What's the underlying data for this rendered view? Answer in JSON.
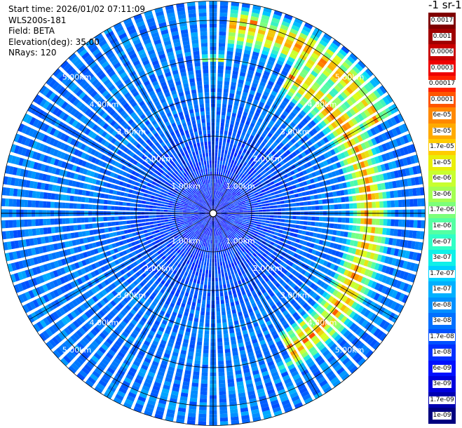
{
  "info": {
    "start_time": "Start time: 2026/01/02 07:11:09",
    "instrument": "WLS200s-181",
    "field": "Field: BETA",
    "elevation": "Elevation(deg): 35.00",
    "nrays": "NRays: 120"
  },
  "colorbar": {
    "title": "-1 sr-1",
    "ticks": [
      "0.0017",
      "0.001",
      "0.0006",
      "0.0003",
      "0.00017",
      "0.0001",
      "6e-05",
      "3e-05",
      "1.7e-05",
      "1e-05",
      "6e-06",
      "3e-06",
      "1.7e-06",
      "1e-06",
      "6e-07",
      "3e-07",
      "1.7e-07",
      "1e-07",
      "6e-08",
      "3e-08",
      "1.7e-08",
      "1e-08",
      "6e-09",
      "3e-09",
      "1.7e-09",
      "1e-09"
    ],
    "colors": [
      "#7f0000",
      "#a00000",
      "#c80000",
      "#ee0000",
      "#ff2200",
      "#ff5500",
      "#ff8800",
      "#ffaa00",
      "#ffcc00",
      "#e9ef0a",
      "#c8ff2e",
      "#a4ff52",
      "#7dff7a",
      "#54ffa2",
      "#30ffc6",
      "#10f0e8",
      "#00d0ff",
      "#00b0ff",
      "#0090ff",
      "#0070ff",
      "#0050ff",
      "#0030ff",
      "#0010ff",
      "#0000dd",
      "#0000b0",
      "#00007f"
    ]
  },
  "chart_data": {
    "type": "heatmap",
    "projection": "polar (PPI scan)",
    "field": "BETA",
    "units": "-1 sr-1",
    "elevation_deg": 35.0,
    "nrays": 120,
    "range_rings_km": [
      1.0,
      2.0,
      3.0,
      4.0,
      5.0
    ],
    "range_ring_labels": [
      "1.00km",
      "2.00km",
      "3.00km",
      "4.00km",
      "5.00km"
    ],
    "max_range_km": 5.5,
    "color_scale": "log",
    "value_range": [
      1e-09,
      0.0017
    ],
    "background_level": 1e-07,
    "near_range_level": 1e-08,
    "features": [
      {
        "description": "enhanced backscatter arc",
        "azimuth_deg": [
          30,
          150
        ],
        "range_km": [
          3.5,
          4.6
        ],
        "peak_value": 0.0003
      },
      {
        "description": "enhanced backscatter arc",
        "azimuth_deg": [
          5,
          60
        ],
        "range_km": [
          4.3,
          5.4
        ],
        "peak_value": 0.0003
      },
      {
        "description": "high patch",
        "azimuth_deg": [
          -4,
          4
        ],
        "range_km": [
          3.9,
          4.1
        ],
        "peak_value": 3e-05
      },
      {
        "description": "high patch",
        "azimuth_deg": [
          7,
          14
        ],
        "range_km": [
          4.9,
          5.2
        ],
        "peak_value": 0.0003
      },
      {
        "description": "high patch",
        "azimuth_deg": [
          137,
          142
        ],
        "range_km": [
          3.55,
          3.8
        ],
        "peak_value": 3e-05
      },
      {
        "description": "high patch",
        "azimuth_deg": [
          152,
          156
        ],
        "range_km": [
          4.25,
          4.5
        ],
        "peak_value": 6e-06
      },
      {
        "description": "high patch",
        "azimuth_deg": [
          48,
          53
        ],
        "range_km": [
          4.0,
          4.2
        ],
        "peak_value": 1e-05
      }
    ]
  }
}
